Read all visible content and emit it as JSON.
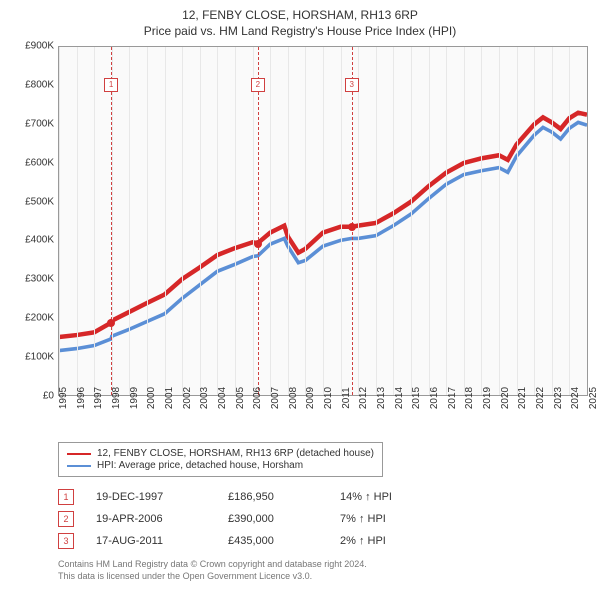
{
  "title_line1": "12, FENBY CLOSE, HORSHAM, RH13 6RP",
  "title_line2": "Price paid vs. HM Land Registry's House Price Index (HPI)",
  "chart": {
    "type": "line",
    "y_label_prefix": "£",
    "ylim": [
      0,
      900
    ],
    "yticks": [
      0,
      100,
      200,
      300,
      400,
      500,
      600,
      700,
      800,
      900
    ],
    "ytick_labels": [
      "£0",
      "£100K",
      "£200K",
      "£300K",
      "£400K",
      "£500K",
      "£600K",
      "£700K",
      "£800K",
      "£900K"
    ],
    "xlim": [
      1995,
      2025
    ],
    "xticks": [
      1995,
      1996,
      1997,
      1998,
      1999,
      2000,
      2001,
      2002,
      2003,
      2004,
      2005,
      2006,
      2007,
      2008,
      2009,
      2010,
      2011,
      2012,
      2013,
      2014,
      2015,
      2016,
      2017,
      2018,
      2019,
      2020,
      2021,
      2022,
      2023,
      2024,
      2025
    ],
    "grid_color": "#e8e8e8",
    "background_color": "#fafafa",
    "border_color": "#999999",
    "series": [
      {
        "name": "property",
        "color": "#d62728",
        "width": 1.5,
        "points": [
          [
            1995,
            150
          ],
          [
            1996,
            155
          ],
          [
            1997,
            162
          ],
          [
            1997.96,
            187
          ],
          [
            1998,
            192
          ],
          [
            1999,
            215
          ],
          [
            2000,
            238
          ],
          [
            2001,
            260
          ],
          [
            2002,
            300
          ],
          [
            2003,
            330
          ],
          [
            2004,
            362
          ],
          [
            2005,
            380
          ],
          [
            2006,
            395
          ],
          [
            2006.3,
            393
          ],
          [
            2007,
            420
          ],
          [
            2007.8,
            438
          ],
          [
            2008,
            410
          ],
          [
            2008.6,
            368
          ],
          [
            2009,
            378
          ],
          [
            2010,
            420
          ],
          [
            2011,
            435
          ],
          [
            2011.63,
            435
          ],
          [
            2012,
            438
          ],
          [
            2013,
            445
          ],
          [
            2014,
            470
          ],
          [
            2015,
            500
          ],
          [
            2016,
            540
          ],
          [
            2017,
            575
          ],
          [
            2018,
            600
          ],
          [
            2019,
            612
          ],
          [
            2020,
            620
          ],
          [
            2020.5,
            608
          ],
          [
            2021,
            648
          ],
          [
            2022,
            700
          ],
          [
            2022.5,
            718
          ],
          [
            2023,
            705
          ],
          [
            2023.5,
            688
          ],
          [
            2024,
            716
          ],
          [
            2024.5,
            730
          ],
          [
            2025,
            725
          ]
        ]
      },
      {
        "name": "hpi",
        "color": "#5b8fd6",
        "width": 1.2,
        "points": [
          [
            1995,
            115
          ],
          [
            1996,
            120
          ],
          [
            1997,
            128
          ],
          [
            1997.96,
            145
          ],
          [
            1998,
            152
          ],
          [
            1999,
            170
          ],
          [
            2000,
            190
          ],
          [
            2001,
            210
          ],
          [
            2002,
            250
          ],
          [
            2003,
            285
          ],
          [
            2004,
            320
          ],
          [
            2005,
            338
          ],
          [
            2006,
            358
          ],
          [
            2006.3,
            360
          ],
          [
            2007,
            390
          ],
          [
            2007.8,
            405
          ],
          [
            2008,
            385
          ],
          [
            2008.6,
            342
          ],
          [
            2009,
            348
          ],
          [
            2010,
            385
          ],
          [
            2011,
            400
          ],
          [
            2011.63,
            405
          ],
          [
            2012,
            405
          ],
          [
            2013,
            412
          ],
          [
            2014,
            438
          ],
          [
            2015,
            468
          ],
          [
            2016,
            508
          ],
          [
            2017,
            545
          ],
          [
            2018,
            570
          ],
          [
            2019,
            580
          ],
          [
            2020,
            588
          ],
          [
            2020.5,
            576
          ],
          [
            2021,
            618
          ],
          [
            2022,
            672
          ],
          [
            2022.5,
            692
          ],
          [
            2023,
            680
          ],
          [
            2023.5,
            662
          ],
          [
            2024,
            690
          ],
          [
            2024.5,
            705
          ],
          [
            2025,
            698
          ]
        ]
      }
    ],
    "markers": [
      {
        "num": "1",
        "x": 1997.96,
        "y": 187,
        "box_top_pct": 9
      },
      {
        "num": "2",
        "x": 2006.3,
        "y": 390,
        "box_top_pct": 9
      },
      {
        "num": "3",
        "x": 2011.63,
        "y": 435,
        "box_top_pct": 9
      }
    ],
    "marker_line_color": "#d04040",
    "marker_dot_color": "#d62728"
  },
  "legend": {
    "items": [
      {
        "color": "#d62728",
        "label": "12, FENBY CLOSE, HORSHAM, RH13 6RP (detached house)"
      },
      {
        "color": "#5b8fd6",
        "label": "HPI: Average price, detached house, Horsham"
      }
    ]
  },
  "sales": [
    {
      "num": "1",
      "date": "19-DEC-1997",
      "price": "£186,950",
      "hpi": "14% ↑ HPI"
    },
    {
      "num": "2",
      "date": "19-APR-2006",
      "price": "£390,000",
      "hpi": "7% ↑ HPI"
    },
    {
      "num": "3",
      "date": "17-AUG-2011",
      "price": "£435,000",
      "hpi": "2% ↑ HPI"
    }
  ],
  "footer_line1": "Contains HM Land Registry data © Crown copyright and database right 2024.",
  "footer_line2": "This data is licensed under the Open Government Licence v3.0."
}
